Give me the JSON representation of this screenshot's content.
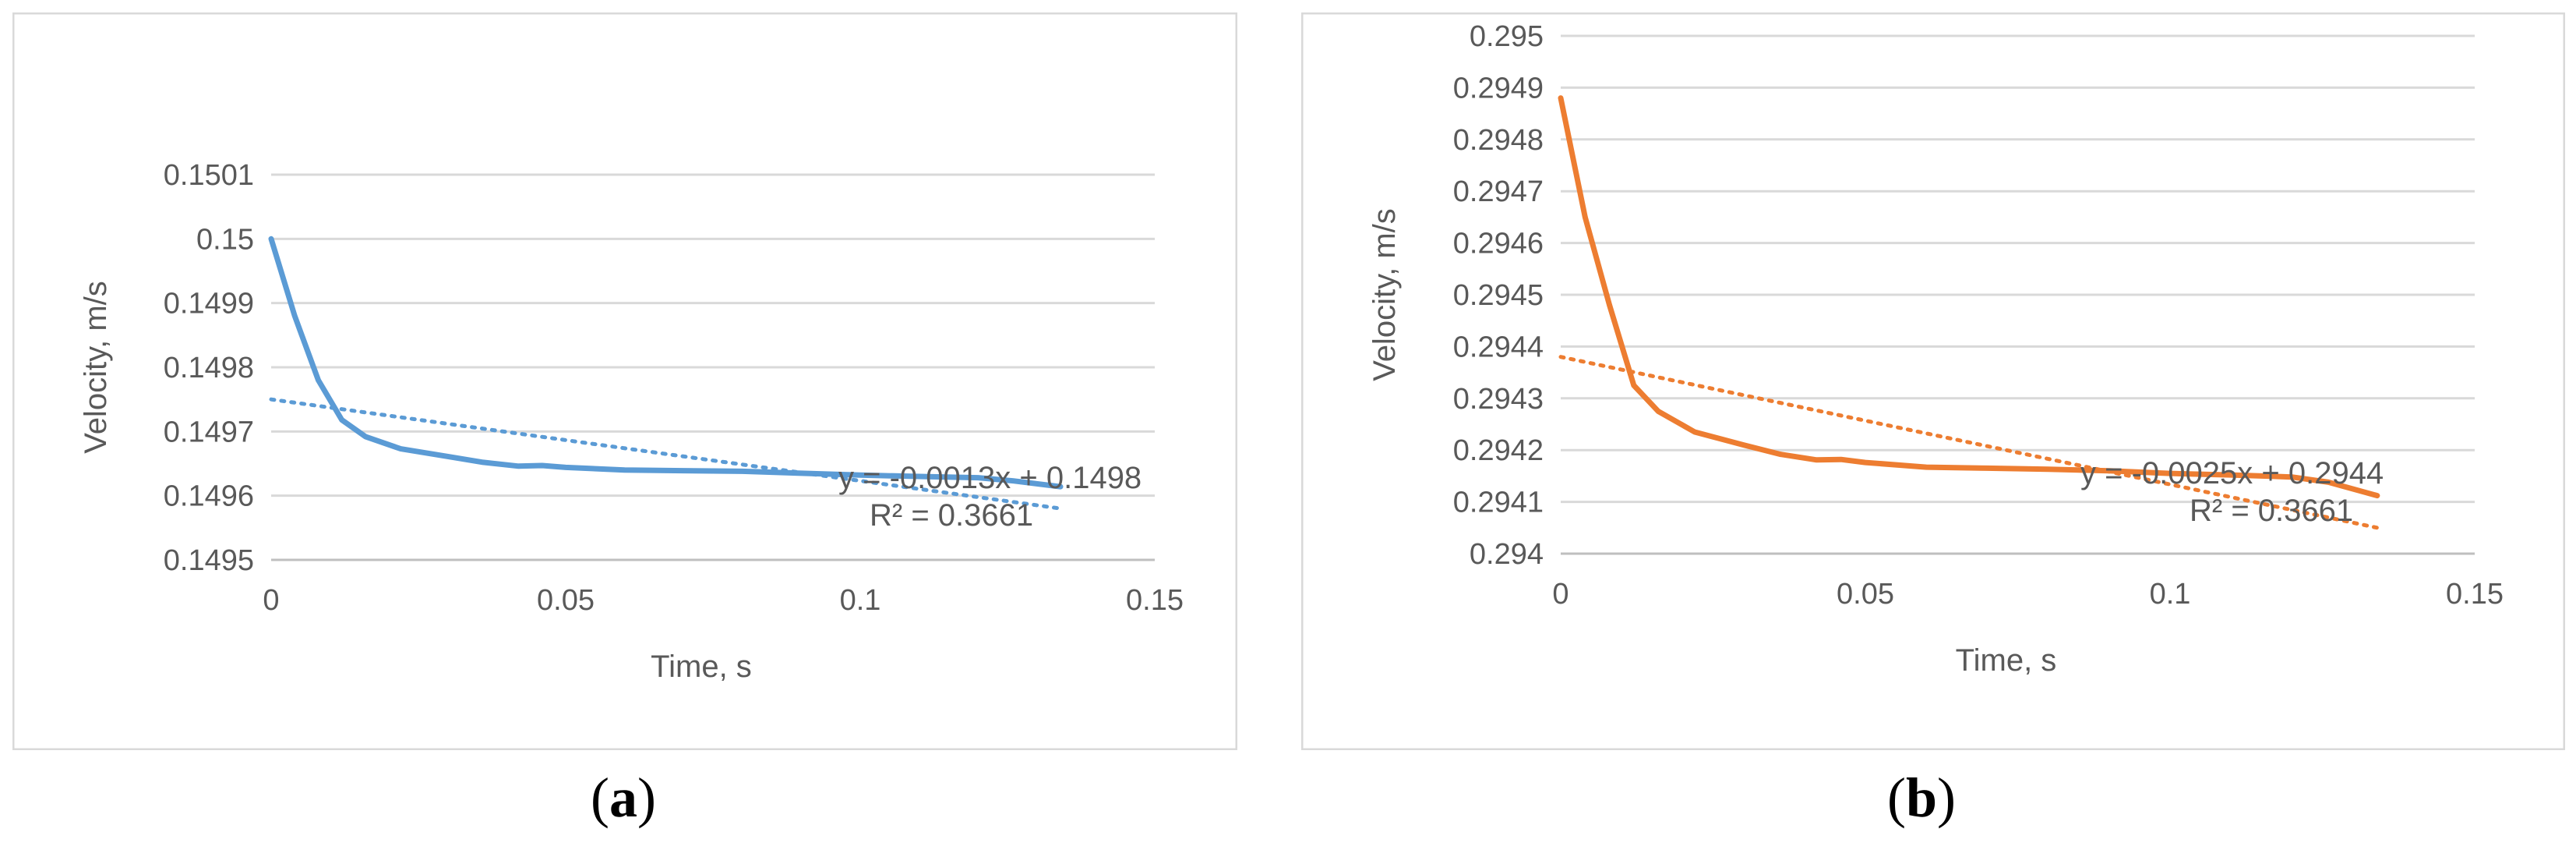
{
  "chart_data": [
    {
      "type": "line",
      "panel": "a",
      "xlabel": "Time, s",
      "ylabel": "Velocity, m/s",
      "xlim": [
        0,
        0.15
      ],
      "ylim": [
        0.1495,
        0.1501
      ],
      "xticks": [
        0,
        0.05,
        0.1,
        0.15
      ],
      "xtick_labels": [
        "0",
        "0.05",
        "0.1",
        "0.15"
      ],
      "yticks": [
        0.1495,
        0.1496,
        0.1497,
        0.1498,
        0.1499,
        0.15,
        0.1501
      ],
      "ytick_labels": [
        "0.1495",
        "0.1496",
        "0.1497",
        "0.1498",
        "0.1499",
        "0.15",
        "0.1501"
      ],
      "grid": true,
      "series": [
        {
          "color": "#5b9bd5",
          "x": [
            0,
            0.004,
            0.008,
            0.012,
            0.016,
            0.022,
            0.03,
            0.036,
            0.042,
            0.046,
            0.05,
            0.06,
            0.07,
            0.08,
            0.09,
            0.1,
            0.11,
            0.12,
            0.126,
            0.134
          ],
          "y": [
            0.15,
            0.14988,
            0.14978,
            0.149718,
            0.149692,
            0.149673,
            0.149661,
            0.149652,
            0.149646,
            0.149647,
            0.149644,
            0.14964,
            0.149639,
            0.149638,
            0.149635,
            0.149632,
            0.14963,
            0.149628,
            0.149623,
            0.149614
          ]
        }
      ],
      "trendline": {
        "color": "#5b9bd5",
        "x": [
          0,
          0.134
        ],
        "y": [
          0.14975,
          0.14958
        ],
        "equation": "y = -0.0013x + 0.1498",
        "r2": "R² = 0.3661"
      }
    },
    {
      "type": "line",
      "panel": "b",
      "xlabel": "Time, s",
      "ylabel": "Velocity, m/s",
      "xlim": [
        0,
        0.15
      ],
      "ylim": [
        0.294,
        0.295
      ],
      "xticks": [
        0,
        0.05,
        0.1,
        0.15
      ],
      "xtick_labels": [
        "0",
        "0.05",
        "0.1",
        "0.15"
      ],
      "yticks": [
        0.294,
        0.2941,
        0.2942,
        0.2943,
        0.2944,
        0.2945,
        0.2946,
        0.2947,
        0.2948,
        0.2949,
        0.295
      ],
      "ytick_labels": [
        "0.294",
        "0.2941",
        "0.2942",
        "0.2943",
        "0.2944",
        "0.2945",
        "0.2946",
        "0.2947",
        "0.2948",
        "0.2949",
        "0.295"
      ],
      "grid": true,
      "series": [
        {
          "color": "#ed7d31",
          "x": [
            0,
            0.004,
            0.008,
            0.012,
            0.016,
            0.022,
            0.03,
            0.036,
            0.042,
            0.046,
            0.05,
            0.06,
            0.07,
            0.08,
            0.09,
            0.1,
            0.11,
            0.12,
            0.126,
            0.134
          ],
          "y": [
            0.29488,
            0.29465,
            0.29448,
            0.294325,
            0.294275,
            0.294235,
            0.29421,
            0.294192,
            0.294181,
            0.294182,
            0.294176,
            0.294167,
            0.294165,
            0.294163,
            0.29416,
            0.294155,
            0.294152,
            0.294148,
            0.294138,
            0.294112
          ]
        }
      ],
      "trendline": {
        "color": "#ed7d31",
        "x": [
          0,
          0.134
        ],
        "y": [
          0.29438,
          0.29405
        ],
        "equation": "y = -0.0025x + 0.2944",
        "r2": "R² = 0.3661"
      }
    }
  ],
  "captions": {
    "a": "a",
    "b": "b"
  }
}
